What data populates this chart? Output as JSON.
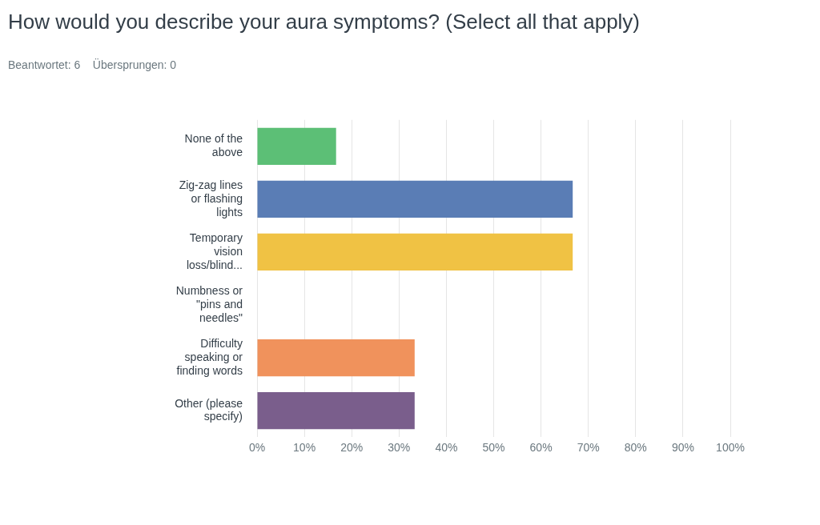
{
  "chart_data": {
    "type": "bar",
    "orientation": "horizontal",
    "title": "How would you describe your aura symptoms? (Select all that apply)",
    "subtitle": "Beantwortet: 6    Übersprungen: 0",
    "categories": [
      "None of the above",
      "Zig-zag lines or flashing lights",
      "Temporary vision loss/blind...",
      "Numbness or \"pins and needles\"",
      "Difficulty speaking or finding words",
      "Other (please specify)"
    ],
    "values": [
      16.7,
      66.7,
      66.7,
      0,
      33.3,
      33.3
    ],
    "colors": [
      "#5cbf76",
      "#5a7db5",
      "#f0c244",
      "#e8e8e8",
      "#f0925c",
      "#7a5e8c"
    ],
    "xlim": [
      0,
      100
    ],
    "xticks": [
      {
        "value": 0,
        "label": "0%"
      },
      {
        "value": 10,
        "label": "10%"
      },
      {
        "value": 20,
        "label": "20%"
      },
      {
        "value": 30,
        "label": "30%"
      },
      {
        "value": 40,
        "label": "40%"
      },
      {
        "value": 50,
        "label": "50%"
      },
      {
        "value": 60,
        "label": "60%"
      },
      {
        "value": 70,
        "label": "70%"
      },
      {
        "value": 80,
        "label": "80%"
      },
      {
        "value": 90,
        "label": "90%"
      },
      {
        "value": 100,
        "label": "100%"
      }
    ],
    "grid": "x"
  }
}
